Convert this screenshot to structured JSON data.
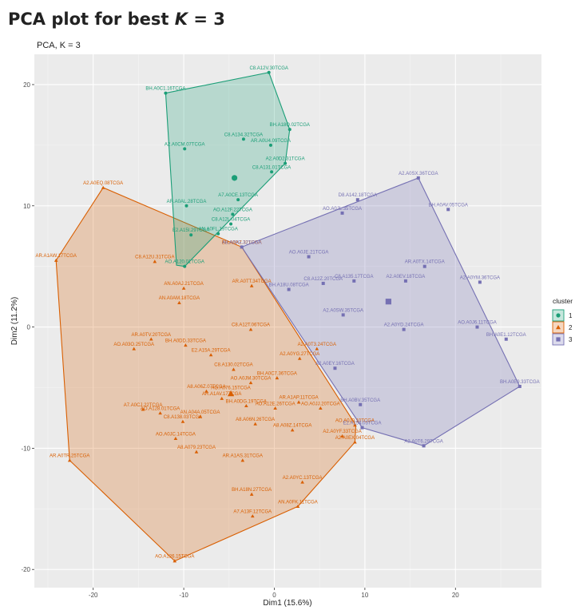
{
  "page": {
    "title_prefix": "PCA plot for best ",
    "title_var": "K",
    "title_suffix": " = 3"
  },
  "chart_data": {
    "type": "scatter",
    "title": "PCA, K = 3",
    "xlabel": "Dim1 (15.6%)",
    "ylabel": "Dim2 (11.2%)",
    "xlim": [
      -26.5,
      29.5
    ],
    "ylim": [
      -21.5,
      22.5
    ],
    "x_ticks": [
      -20,
      -10,
      0,
      10,
      20
    ],
    "y_ticks": [
      -20,
      -10,
      0,
      10,
      20
    ],
    "grid": true,
    "legend": {
      "title": "cluster",
      "position": "right"
    },
    "series": [
      {
        "name": "1",
        "shape": "circle",
        "color": "#1b9e77",
        "hull": [
          [
            -12,
            19.3
          ],
          [
            -0.6,
            21
          ],
          [
            1.7,
            16.3
          ],
          [
            1.2,
            13.5
          ],
          [
            -9.9,
            5
          ],
          [
            -10.8,
            5.1
          ]
        ],
        "centroid": [
          -4.4,
          12.3
        ],
        "points": [
          {
            "x": -12,
            "y": 19.3,
            "label": "BH.A0C1.16TCGA"
          },
          {
            "x": -0.6,
            "y": 21,
            "label": "C8.A12V.30TCGA"
          },
          {
            "x": 1.7,
            "y": 16.3,
            "label": "BH.A18Q.02TCGA"
          },
          {
            "x": -3.4,
            "y": 15.5,
            "label": "C8.A134.32TCGA"
          },
          {
            "x": -9.9,
            "y": 14.7,
            "label": "A2.A0CM.07TCGA"
          },
          {
            "x": -0.4,
            "y": 15,
            "label": "AR.A0U4.09TCGA"
          },
          {
            "x": 1.2,
            "y": 13.5,
            "label": "A2.A0D2.31TCGA"
          },
          {
            "x": -0.3,
            "y": 12.8,
            "label": "C8.A131.01TCGA"
          },
          {
            "x": -4,
            "y": 10.5,
            "label": "A7.A0CE.13TCGA"
          },
          {
            "x": -9.7,
            "y": 10,
            "label": "AR.A0AL.28TCGA"
          },
          {
            "x": -4.6,
            "y": 9.3,
            "label": "AO.A12F.22TCGA"
          },
          {
            "x": -4.8,
            "y": 8.5,
            "label": "C8.A12L.04TCGA"
          },
          {
            "x": -9.2,
            "y": 7.6,
            "label": "E2.A15I.29TCGA"
          },
          {
            "x": -6.2,
            "y": 7.7,
            "label": "AN.A0FL.19TCGA"
          },
          {
            "x": -9.9,
            "y": 5,
            "label": "AO.A120.01TCGA"
          }
        ]
      },
      {
        "name": "2",
        "shape": "triangle",
        "color": "#d95f02",
        "hull": [
          [
            -18.9,
            11.5
          ],
          [
            -24.1,
            5.5
          ],
          [
            -22.6,
            -11
          ],
          [
            -11,
            -19.3
          ],
          [
            2.6,
            -14.8
          ],
          [
            8.9,
            -9.5
          ],
          [
            9,
            -8.1
          ],
          [
            -3.6,
            6.6
          ]
        ],
        "centroid": [
          -4.8,
          -5.5
        ],
        "points": [
          {
            "x": -18.9,
            "y": 11.5,
            "label": "A2.A0EQ.08TCGA"
          },
          {
            "x": -24.1,
            "y": 5.5,
            "label": "AR.A1AW.17TCGA"
          },
          {
            "x": -13.2,
            "y": 5.4,
            "label": "C8.A12U.31TCGA"
          },
          {
            "x": -3.6,
            "y": 6.6,
            "label": "BH.A0AZ.32TCGA"
          },
          {
            "x": -10,
            "y": 3.2,
            "label": "AN.A0AJ.21TCGA"
          },
          {
            "x": -2.5,
            "y": 3.4,
            "label": "AR.A0TT.34TCGA"
          },
          {
            "x": -10.5,
            "y": 2,
            "label": "AN.A0AM.18TCGA"
          },
          {
            "x": -13.6,
            "y": -1,
            "label": "AR.A0TV.20TCGA"
          },
          {
            "x": -2.6,
            "y": -0.2,
            "label": "C8.A12T.06TCGA"
          },
          {
            "x": -9.8,
            "y": -1.5,
            "label": "BH.A0DD.33TCGA"
          },
          {
            "x": -15.5,
            "y": -1.8,
            "label": "AO.A03O.25TCGA"
          },
          {
            "x": 4.7,
            "y": -1.8,
            "label": "A2.A0T3.24TCGA"
          },
          {
            "x": -7,
            "y": -2.3,
            "label": "E2.A15A.29TCGA"
          },
          {
            "x": 2.8,
            "y": -2.6,
            "label": "A2.A0YG.27TCGA"
          },
          {
            "x": -4.5,
            "y": -3.5,
            "label": "C8.A130.02TCGA"
          },
          {
            "x": 0.3,
            "y": -4.2,
            "label": "BH.A0C7.36TCGA"
          },
          {
            "x": -2.6,
            "y": -4.6,
            "label": "AO.A0JM.30TCGA"
          },
          {
            "x": -7.5,
            "y": -5.3,
            "label": "A8.A06Z.07TCGA"
          },
          {
            "x": -4.8,
            "y": -5.4,
            "label": "AO.A076.15TCGA"
          },
          {
            "x": -5.8,
            "y": -5.9,
            "label": "AR.A1AV.17TCGA"
          },
          {
            "x": 2.7,
            "y": -6.2,
            "label": "AR.A1AP.11TCGA"
          },
          {
            "x": -3.1,
            "y": -6.5,
            "label": "BH.A0DG.19TCGA"
          },
          {
            "x": 0.1,
            "y": -6.7,
            "label": "AO.A12E.26TCGA"
          },
          {
            "x": 5.1,
            "y": -6.7,
            "label": "AO.A0JJ.20TCGA"
          },
          {
            "x": -14.5,
            "y": -6.8,
            "label": "A7.A0CJ.22TCGA"
          },
          {
            "x": -12.6,
            "y": -7.1,
            "label": "AO.A128.01TCGA"
          },
          {
            "x": -8.2,
            "y": -7.4,
            "label": "AN.A04A.05TCGA"
          },
          {
            "x": 8.9,
            "y": -8.1,
            "label": "AO.A0J9.10TCGA"
          },
          {
            "x": -10.1,
            "y": -7.8,
            "label": "C8.A138.03TCGA"
          },
          {
            "x": -2.1,
            "y": -8,
            "label": "A8.A06N.26TCGA"
          },
          {
            "x": 2,
            "y": -8.5,
            "label": "A8.A08Z.14TCGA"
          },
          {
            "x": 7.5,
            "y": -9,
            "label": "A2.A0YF.33TCGA"
          },
          {
            "x": 8.9,
            "y": -9.5,
            "label": "A2.A0EX.04TCGA"
          },
          {
            "x": -10.9,
            "y": -9.2,
            "label": "AO.A0JC.14TCGA"
          },
          {
            "x": -22.6,
            "y": -11,
            "label": "AR.A0TR.25TCGA"
          },
          {
            "x": -8.6,
            "y": -10.3,
            "label": "A8.A079.23TCGA"
          },
          {
            "x": -3.5,
            "y": -11,
            "label": "AR.A1AS.31TCGA"
          },
          {
            "x": 3.1,
            "y": -12.8,
            "label": "A2.A0YC.13TCGA"
          },
          {
            "x": -2.5,
            "y": -13.8,
            "label": "BH.A18N.27TCGA"
          },
          {
            "x": -2.4,
            "y": -15.6,
            "label": "A7.A13F.12TCGA"
          },
          {
            "x": 2.6,
            "y": -14.8,
            "label": "AN.A0FK.11TCGA"
          },
          {
            "x": -11,
            "y": -19.3,
            "label": "AO.A126.15TCGA"
          }
        ]
      },
      {
        "name": "3",
        "shape": "square",
        "color": "#7570b3",
        "hull": [
          [
            -3.6,
            6.6
          ],
          [
            15.9,
            12.3
          ],
          [
            27.1,
            -4.9
          ],
          [
            16.5,
            -9.8
          ],
          [
            9.7,
            -8.3
          ]
        ],
        "centroid": [
          12.6,
          2.1
        ],
        "points": [
          {
            "x": 15.9,
            "y": 12.3,
            "label": "A2.A0SX.36TCGA"
          },
          {
            "x": 9.2,
            "y": 10.5,
            "label": "D8.A142.18TCGA"
          },
          {
            "x": 7.5,
            "y": 9.4,
            "label": "AO.A0JL.35TCGA"
          },
          {
            "x": 19.2,
            "y": 9.7,
            "label": "BH.A0AV.05TCGA"
          },
          {
            "x": -3.6,
            "y": 6.6,
            "label": "A8.A09G.32TCGA"
          },
          {
            "x": 3.8,
            "y": 5.8,
            "label": "AO.A0JE.21TCGA"
          },
          {
            "x": 16.6,
            "y": 5,
            "label": "AR.A0TX.14TCGA"
          },
          {
            "x": 5.4,
            "y": 3.6,
            "label": "C8.A12Z.20TCGA"
          },
          {
            "x": 8.8,
            "y": 3.8,
            "label": "C8.A135.17TCGA"
          },
          {
            "x": 14.5,
            "y": 3.8,
            "label": "A2.A0EV.18TCGA"
          },
          {
            "x": 22.7,
            "y": 3.7,
            "label": "A2.A0YM.36TCGA"
          },
          {
            "x": 1.6,
            "y": 3.1,
            "label": "BH.A18U.08TCGA"
          },
          {
            "x": 7.6,
            "y": 1,
            "label": "A2.A0SW.35TCGA"
          },
          {
            "x": 14.3,
            "y": -0.2,
            "label": "A2.A0YD.24TCGA"
          },
          {
            "x": 22.4,
            "y": 0,
            "label": "AO.A0J6.11TCGA"
          },
          {
            "x": 25.6,
            "y": -1,
            "label": "BH.A0E1.12TCGA"
          },
          {
            "x": 6.7,
            "y": -3.4,
            "label": "A2.A0EY.16TCGA"
          },
          {
            "x": 27.1,
            "y": -4.9,
            "label": "BH.A0E9.33TCGA"
          },
          {
            "x": 9.5,
            "y": -6.4,
            "label": "BH.A0BV.35TCGA"
          },
          {
            "x": 9.7,
            "y": -8.3,
            "label": "E2.A154.03TCGA"
          },
          {
            "x": 16.5,
            "y": -9.8,
            "label": "A2.A0T6.29TCGA"
          }
        ]
      }
    ]
  }
}
